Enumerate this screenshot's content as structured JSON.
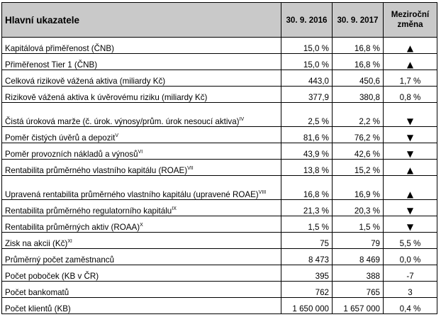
{
  "header": {
    "title": "Hlavní ukazatele",
    "col_2016": "30. 9. 2016",
    "col_2017": "30. 9. 2017",
    "col_change": "Meziroční změna"
  },
  "rows": [
    {
      "label": "Kapitálová přiměřenost (ČNB)",
      "sup": "",
      "v2016": "15,0 %",
      "v2017": "16,8 %",
      "change": "▲",
      "change_icon": "up-triangle-icon"
    },
    {
      "label": "Přiměřenost Tier 1 (ČNB)",
      "sup": "",
      "v2016": "15,0 %",
      "v2017": "16,8 %",
      "change": "▲",
      "change_icon": "up-triangle-icon"
    },
    {
      "label": "Celková rizikově vážená aktiva (miliardy Kč)",
      "sup": "",
      "v2016": "443,0",
      "v2017": "450,6",
      "change": "1,7 %",
      "change_icon": ""
    },
    {
      "label": "Rizikově vážená aktiva k úvěrovému riziku (miliardy Kč)",
      "sup": "",
      "v2016": "377,9",
      "v2017": "380,8",
      "change": "0,8 %",
      "change_icon": ""
    },
    {
      "label": "Čistá úroková marže (č. úrok. výnosy/prům. úrok nesoucí aktiva)",
      "sup": "IV",
      "v2016": "2,5 %",
      "v2017": "2,2 %",
      "change": "▼",
      "change_icon": "down-triangle-icon"
    },
    {
      "label": "Poměr čistých úvěrů a depozit",
      "sup": "V",
      "v2016": "81,6 %",
      "v2017": "76,2 %",
      "change": "▼",
      "change_icon": "down-triangle-icon"
    },
    {
      "label": "Poměr provozních nákladů a výnosů",
      "sup": "VI",
      "v2016": "43,9 %",
      "v2017": "42,6 %",
      "change": "▼",
      "change_icon": "down-triangle-icon"
    },
    {
      "label": "Rentabilita průměrného vlastního kapitálu (ROAE)",
      "sup": "VII",
      "v2016": "13,8 %",
      "v2017": "15,2 %",
      "change": "▲",
      "change_icon": "up-triangle-icon"
    },
    {
      "label": "Upravená rentabilita průměrného vlastního kapitálu (upravené ROAE)",
      "sup": "VIII",
      "v2016": "16,8 %",
      "v2017": "16,9 %",
      "change": "▲",
      "change_icon": "up-triangle-icon"
    },
    {
      "label": "Rentabilita průměrného regulatorního kapitálu",
      "sup": "IX",
      "v2016": "21,3 %",
      "v2017": "20,3 %",
      "change": "▼",
      "change_icon": "down-triangle-icon"
    },
    {
      "label": "Rentabilita průměrných aktiv (ROAA)",
      "sup": "X",
      "v2016": "1,5 %",
      "v2017": "1,5 %",
      "change": "▼",
      "change_icon": "down-triangle-icon"
    },
    {
      "label": "Zisk na akcii (Kč)",
      "sup": "XI",
      "v2016": "75",
      "v2017": "79",
      "change": "5,5 %",
      "change_icon": ""
    },
    {
      "label": "Průměrný počet zaměstnanců",
      "sup": "",
      "v2016": "8 473",
      "v2017": "8 469",
      "change": "0,0 %",
      "change_icon": ""
    },
    {
      "label": "Počet poboček (KB v ČR)",
      "sup": "",
      "v2016": "395",
      "v2017": "388",
      "change": "-7",
      "change_icon": ""
    },
    {
      "label": "Počet bankomatů",
      "sup": "",
      "v2016": "762",
      "v2017": "765",
      "change": "3",
      "change_icon": ""
    },
    {
      "label": "Počet klientů (KB)",
      "sup": "",
      "v2016": "1 650 000",
      "v2017": "1 657 000",
      "change": "0,4 %",
      "change_icon": ""
    }
  ]
}
